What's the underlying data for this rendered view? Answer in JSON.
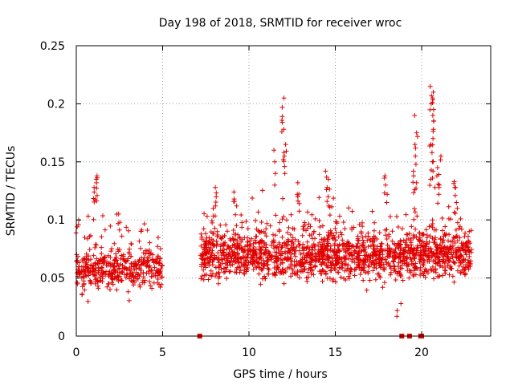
{
  "chart_data": {
    "type": "scatter",
    "title": "Day 198 of 2018, SRMTID for receiver wroc",
    "xlabel": "GPS time / hours",
    "ylabel": "SRMTID / TECUs",
    "xlim": [
      0,
      24
    ],
    "ylim": [
      0,
      0.25
    ],
    "x_ticks": [
      0,
      5,
      10,
      15,
      20
    ],
    "x_tick_labels": [
      "0",
      "5",
      "10",
      "15",
      "20"
    ],
    "y_ticks": [
      0,
      0.05,
      0.1,
      0.15,
      0.2,
      0.25
    ],
    "y_tick_labels": [
      "0",
      "0.05",
      "0.1",
      "0.15",
      "0.2",
      "0.25"
    ],
    "grid": true,
    "marker": "+",
    "color": "#e00000",
    "series": [
      {
        "name": "SRMTID",
        "segments": [
          {
            "t_start": 0.0,
            "t_end": 5.0,
            "level": 0.058,
            "spread": 0.018,
            "count": 420,
            "bursts": [
              {
                "t": 1.1,
                "y": [
                  0.138,
                  0.135,
                  0.132,
                  0.128,
                  0.124,
                  0.121,
                  0.118
                ]
              },
              {
                "t": 2.45,
                "y": [
                  0.105,
                  0.098
                ]
              },
              {
                "t": 0.1,
                "y": [
                  0.1,
                  0.094
                ]
              }
            ]
          },
          {
            "t_start": 7.2,
            "t_end": 22.9,
            "level": 0.07,
            "spread": 0.02,
            "count": 1700,
            "bursts": [
              {
                "t": 12.0,
                "y": [
                  0.205,
                  0.197,
                  0.189,
                  0.184,
                  0.178,
                  0.165,
                  0.158,
                  0.152,
                  0.146,
                  0.14
                ]
              },
              {
                "t": 11.5,
                "y": [
                  0.16,
                  0.14,
                  0.13
                ]
              },
              {
                "t": 14.5,
                "y": [
                  0.142,
                  0.135,
                  0.128,
                  0.12,
                  0.112
                ]
              },
              {
                "t": 17.9,
                "y": [
                  0.138,
                  0.13,
                  0.122,
                  0.115
                ]
              },
              {
                "t": 19.6,
                "y": [
                  0.19,
                  0.175,
                  0.165,
                  0.155,
                  0.148,
                  0.142,
                  0.138,
                  0.132,
                  0.126
                ]
              },
              {
                "t": 20.6,
                "y": [
                  0.215,
                  0.21,
                  0.205,
                  0.2,
                  0.195,
                  0.19,
                  0.185,
                  0.178,
                  0.17,
                  0.165,
                  0.158,
                  0.15,
                  0.142,
                  0.135
                ]
              },
              {
                "t": 21.0,
                "y": [
                  0.155,
                  0.145,
                  0.138,
                  0.13,
                  0.122
                ]
              },
              {
                "t": 22.0,
                "y": [
                  0.133,
                  0.128,
                  0.121,
                  0.115,
                  0.11
                ]
              },
              {
                "t": 9.2,
                "y": [
                  0.124,
                  0.118,
                  0.112
                ]
              },
              {
                "t": 8.0,
                "y": [
                  0.128,
                  0.12,
                  0.112
                ]
              },
              {
                "t": 12.9,
                "y": [
                  0.132,
                  0.122,
                  0.114
                ]
              },
              {
                "t": 18.7,
                "y": [
                  0.022,
                  0.028
                ]
              }
            ]
          }
        ],
        "zero_markers_hours": [
          7.15,
          18.85,
          19.3,
          19.95,
          20.0
        ]
      }
    ]
  }
}
